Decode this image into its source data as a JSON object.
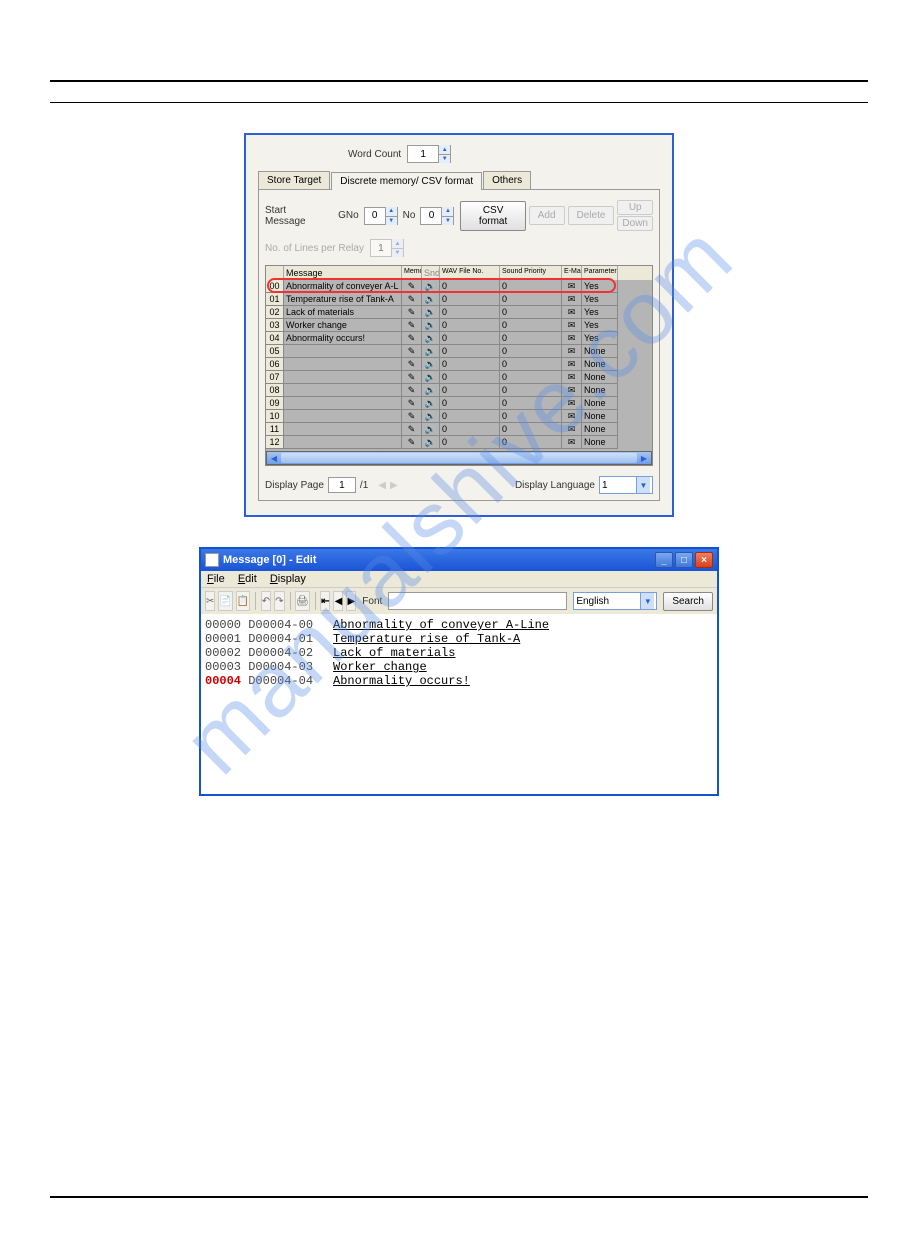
{
  "dialog1": {
    "wordCount": {
      "label": "Word Count",
      "value": "1"
    },
    "tabs": [
      "Store Target",
      "Discrete memory/ CSV format",
      "Others"
    ],
    "activeTab": 1,
    "startMessage": {
      "label": "Start Message",
      "gnoLabel": "GNo",
      "gnoValue": "0",
      "noLabel": "No",
      "noValue": "0"
    },
    "csvFormatBtn": "CSV format",
    "addBtn": "Add",
    "deleteBtn": "Delete",
    "upBtn": "Up",
    "downBtn": "Down",
    "linesPerRelay": {
      "label": "No. of Lines per Relay",
      "value": "1"
    },
    "columns": [
      "",
      "Message",
      "Memorize",
      "Snd",
      "WAV File No.",
      "Sound Priority",
      "E-Mail",
      "Parameter"
    ],
    "rows": [
      {
        "num": "00",
        "msg": "Abnormality of conveyer A-L",
        "wav": "0",
        "sp": "0",
        "par": "Yes"
      },
      {
        "num": "01",
        "msg": "Temperature rise of Tank-A",
        "wav": "0",
        "sp": "0",
        "par": "Yes"
      },
      {
        "num": "02",
        "msg": "Lack of materials",
        "wav": "0",
        "sp": "0",
        "par": "Yes"
      },
      {
        "num": "03",
        "msg": "Worker change",
        "wav": "0",
        "sp": "0",
        "par": "Yes"
      },
      {
        "num": "04",
        "msg": "Abnormality occurs!",
        "wav": "0",
        "sp": "0",
        "par": "Yes"
      },
      {
        "num": "05",
        "msg": "",
        "wav": "0",
        "sp": "0",
        "par": "None"
      },
      {
        "num": "06",
        "msg": "",
        "wav": "0",
        "sp": "0",
        "par": "None"
      },
      {
        "num": "07",
        "msg": "",
        "wav": "0",
        "sp": "0",
        "par": "None"
      },
      {
        "num": "08",
        "msg": "",
        "wav": "0",
        "sp": "0",
        "par": "None"
      },
      {
        "num": "09",
        "msg": "",
        "wav": "0",
        "sp": "0",
        "par": "None"
      },
      {
        "num": "10",
        "msg": "",
        "wav": "0",
        "sp": "0",
        "par": "None"
      },
      {
        "num": "11",
        "msg": "",
        "wav": "0",
        "sp": "0",
        "par": "None"
      },
      {
        "num": "12",
        "msg": "",
        "wav": "0",
        "sp": "0",
        "par": "None"
      }
    ],
    "displayPage": {
      "label": "Display Page",
      "value": "1",
      "total": "/1"
    },
    "displayLanguage": {
      "label": "Display Language",
      "value": "1"
    }
  },
  "win2": {
    "title": "Message [0] - Edit",
    "menus": [
      "File",
      "Edit",
      "Display"
    ],
    "fontLabel": "Font",
    "langSelect": "English",
    "searchBtn": "Search",
    "rows": [
      {
        "idx": "00000",
        "code": "D00004-00",
        "text": "Abnormality of conveyer A-Line"
      },
      {
        "idx": "00001",
        "code": "D00004-01",
        "text": "Temperature rise of Tank-A"
      },
      {
        "idx": "00002",
        "code": "D00004-02",
        "text": "Lack of materials"
      },
      {
        "idx": "00003",
        "code": "D00004-03",
        "text": "Worker change"
      },
      {
        "idx": "00004",
        "code": "D00004-04",
        "text": "Abnormality occurs!"
      }
    ]
  },
  "watermark": "manualshive.com"
}
